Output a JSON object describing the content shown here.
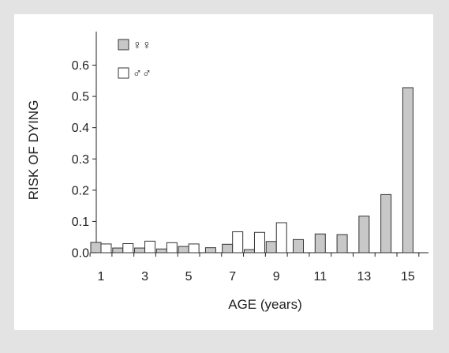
{
  "chart_data": {
    "type": "bar",
    "title": "",
    "xlabel": "AGE (years)",
    "ylabel": "RISK OF DYING",
    "ylim": [
      0,
      0.7
    ],
    "y_ticks": [
      "0.0",
      "0.1",
      "0.2",
      "0.3",
      "0.4",
      "0.5",
      "0.6"
    ],
    "y_tick_values": [
      0,
      0.1,
      0.2,
      0.3,
      0.4,
      0.5,
      0.6
    ],
    "categories": [
      1,
      2,
      3,
      4,
      5,
      6,
      7,
      8,
      9,
      10,
      11,
      12,
      13,
      14,
      15,
      16
    ],
    "x_tick_labels": [
      "1",
      "3",
      "5",
      "7",
      "9",
      "11",
      "13",
      "15"
    ],
    "x_tick_values": [
      1,
      3,
      5,
      7,
      9,
      11,
      13,
      15
    ],
    "grid": false,
    "legend_position": "top-left",
    "series": [
      {
        "name": "♀♀",
        "color": "#c8c8c8",
        "values": [
          0.033,
          0.015,
          0.015,
          0.012,
          0.02,
          0.016,
          0.027,
          0.01,
          0.036,
          0.042,
          0.06,
          0.058,
          0.117,
          0.186,
          0.528,
          null
        ]
      },
      {
        "name": "♂♂",
        "color": "#ffffff",
        "values": [
          0.028,
          0.029,
          0.037,
          0.032,
          0.028,
          null,
          0.067,
          0.065,
          0.096,
          null,
          null,
          null,
          null,
          null,
          null,
          null
        ]
      }
    ]
  }
}
